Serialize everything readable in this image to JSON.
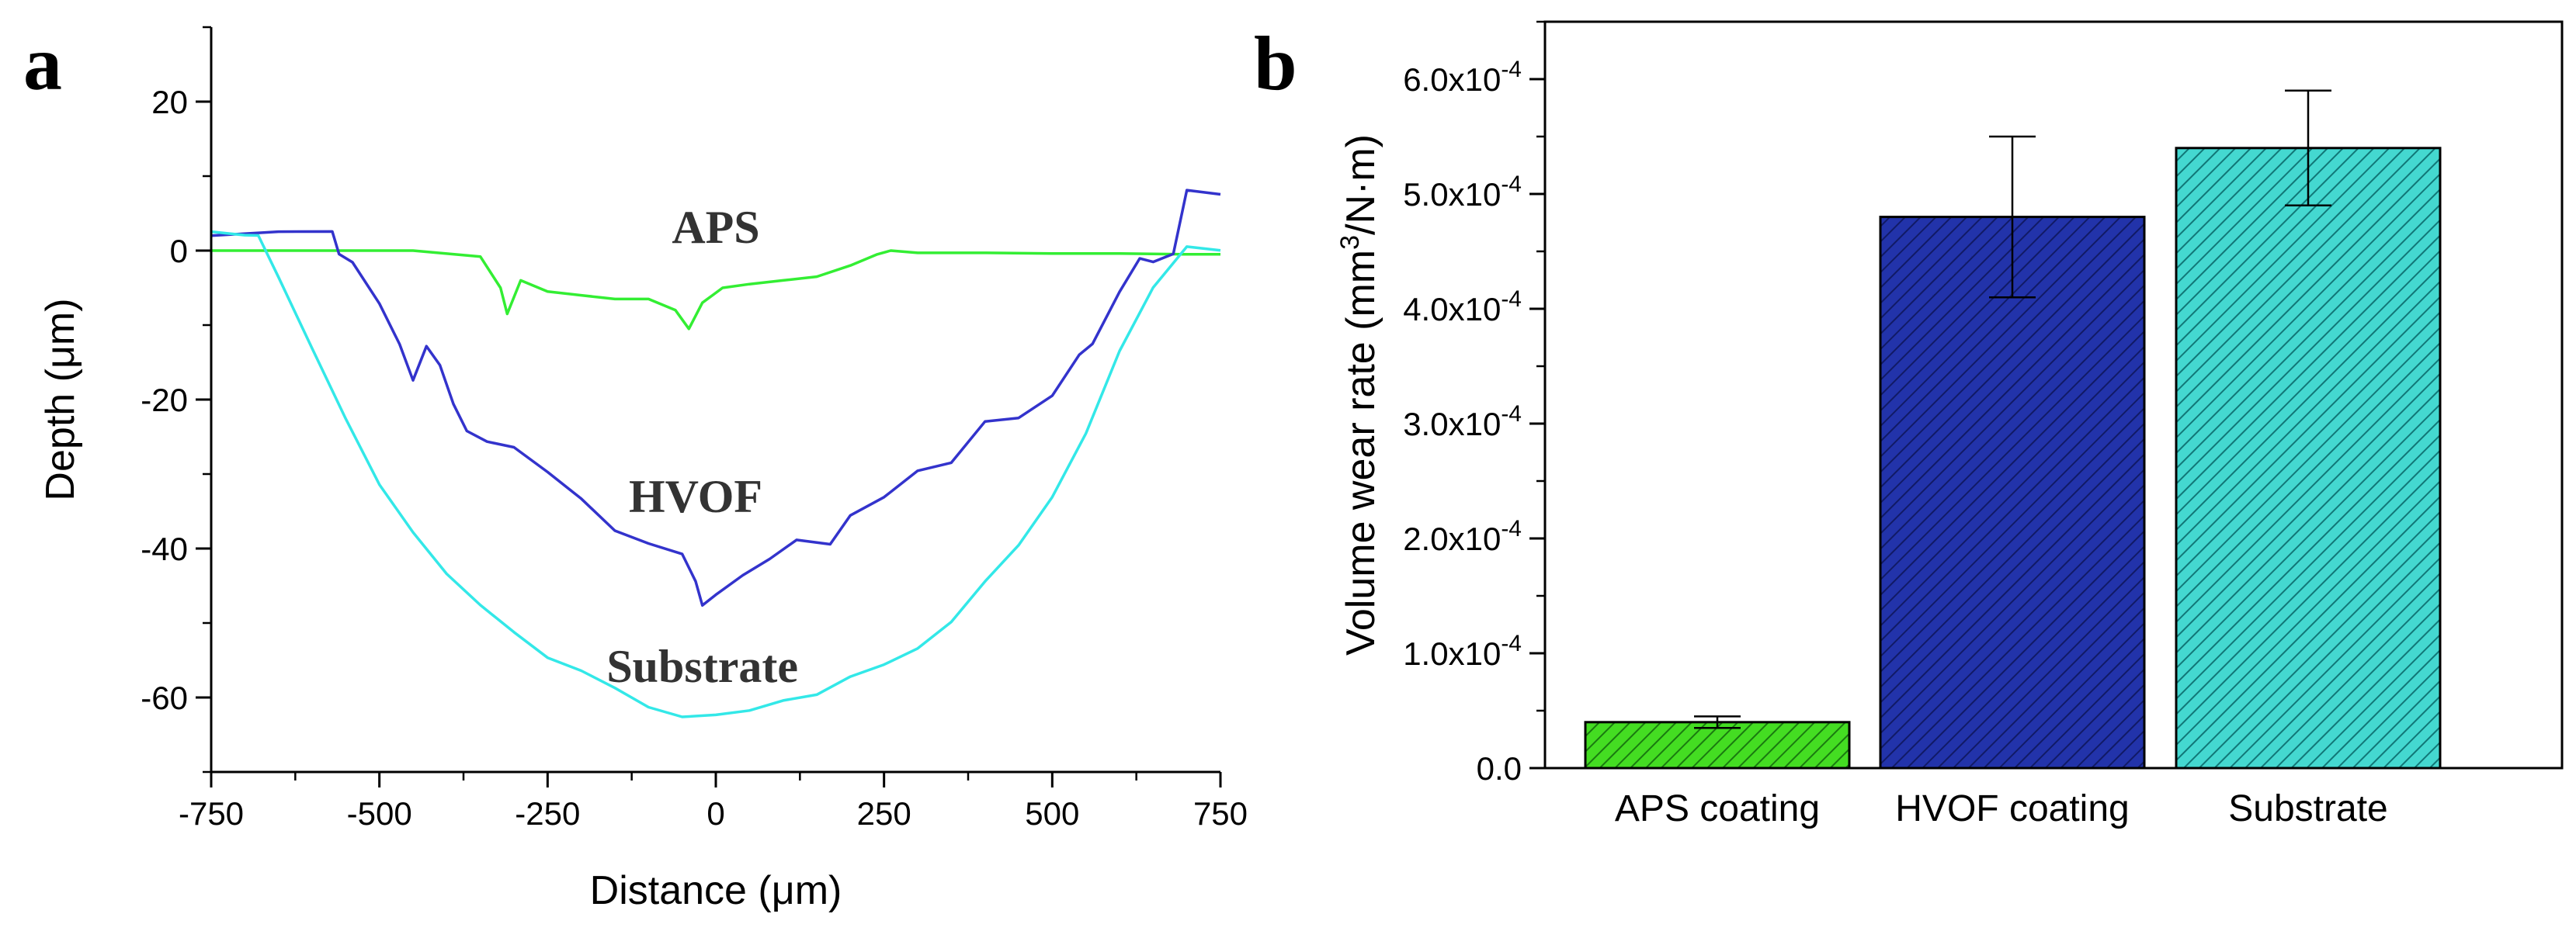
{
  "chart_data": [
    {
      "panel": "a",
      "type": "line",
      "xlabel": "Distance (μm)",
      "ylabel": "Depth (μm)",
      "xlim": [
        -750,
        750
      ],
      "ylim": [
        -70,
        30
      ],
      "xticks": [
        -750,
        -500,
        -250,
        0,
        250,
        500,
        750
      ],
      "yticks": [
        -60,
        -40,
        -20,
        0,
        20
      ],
      "series": [
        {
          "name": "APS",
          "color": "#33ee33",
          "x": [
            -750,
            -600,
            -450,
            -350,
            -320,
            -310,
            -290,
            -250,
            -200,
            -150,
            -100,
            -60,
            -40,
            -20,
            -5,
            10,
            50,
            100,
            150,
            200,
            240,
            260,
            300,
            400,
            500,
            600,
            700,
            750
          ],
          "y": [
            0,
            0,
            0,
            -0.8,
            -5,
            -8.5,
            -4,
            -5.5,
            -6,
            -6.5,
            -6.5,
            -8,
            -10.5,
            -7,
            -6,
            -5,
            -4.5,
            -4,
            -3.5,
            -2,
            -0.5,
            0,
            -0.3,
            -0.3,
            -0.4,
            -0.4,
            -0.5,
            -0.5
          ]
        },
        {
          "name": "HVOF",
          "color": "#3333cc",
          "x": [
            -750,
            -650,
            -570,
            -560,
            -540,
            -500,
            -470,
            -450,
            -430,
            -410,
            -390,
            -370,
            -340,
            -300,
            -250,
            -200,
            -150,
            -100,
            -50,
            -30,
            -20,
            0,
            40,
            80,
            120,
            170,
            200,
            250,
            300,
            350,
            400,
            450,
            500,
            540,
            560,
            600,
            630,
            650,
            680,
            700,
            750
          ],
          "y": [
            1.5,
            2,
            2.5,
            0,
            -1,
            -7,
            -13,
            -18,
            -13,
            -15,
            -20,
            -24,
            -26,
            -27,
            -30,
            -33,
            -37,
            -39,
            -41,
            -45,
            -48,
            -46,
            -43,
            -41,
            -39,
            -40,
            -36,
            -33,
            -29,
            -28,
            -23,
            -23,
            -20,
            -14,
            -12,
            -5,
            -1,
            -2,
            -1,
            8,
            8
          ]
        },
        {
          "name": "Substrate",
          "color": "#33e8e8",
          "x": [
            -750,
            -700,
            -680,
            -650,
            -600,
            -550,
            -500,
            -450,
            -400,
            -350,
            -300,
            -250,
            -200,
            -150,
            -100,
            -50,
            0,
            50,
            100,
            150,
            200,
            250,
            300,
            350,
            400,
            450,
            500,
            550,
            600,
            650,
            700,
            750
          ],
          "y": [
            2,
            2,
            2.5,
            -3,
            -13,
            -23,
            -32,
            -38,
            -43,
            -47,
            -51,
            -55,
            -57,
            -59,
            -61,
            -62,
            -62,
            -62,
            -61,
            -60,
            -57,
            -55,
            -53,
            -50,
            -45,
            -40,
            -33,
            -24,
            -13,
            -5,
            0,
            -0.5
          ]
        }
      ],
      "annotations": [
        "APS",
        "HVOF",
        "Substrate"
      ]
    },
    {
      "panel": "b",
      "type": "bar",
      "ylabel_main": "Volume wear rate (mm",
      "ylabel_sup": "3",
      "ylabel_tail": "/N·m)",
      "ylim": [
        0,
        0.00065
      ],
      "ytick_values": [
        0,
        0.0001,
        0.0002,
        0.0003,
        0.0004,
        0.0005,
        0.0006
      ],
      "ytick_mantissa": [
        "0.0",
        "1.0x10",
        "2.0x10",
        "3.0x10",
        "4.0x10",
        "5.0x10",
        "6.0x10"
      ],
      "ytick_exponent": [
        "",
        "-4",
        "-4",
        "-4",
        "-4",
        "-4",
        "-4"
      ],
      "categories": [
        "APS coating",
        "HVOF coating",
        "Substrate"
      ],
      "values": [
        4e-05,
        0.00048,
        0.00054
      ],
      "errors": [
        5e-06,
        7e-05,
        5e-05
      ],
      "colors": [
        "#33cc33",
        "#2233aa",
        "#33cccc"
      ]
    }
  ],
  "labels": {
    "panel_a": "a",
    "panel_b": "b"
  }
}
